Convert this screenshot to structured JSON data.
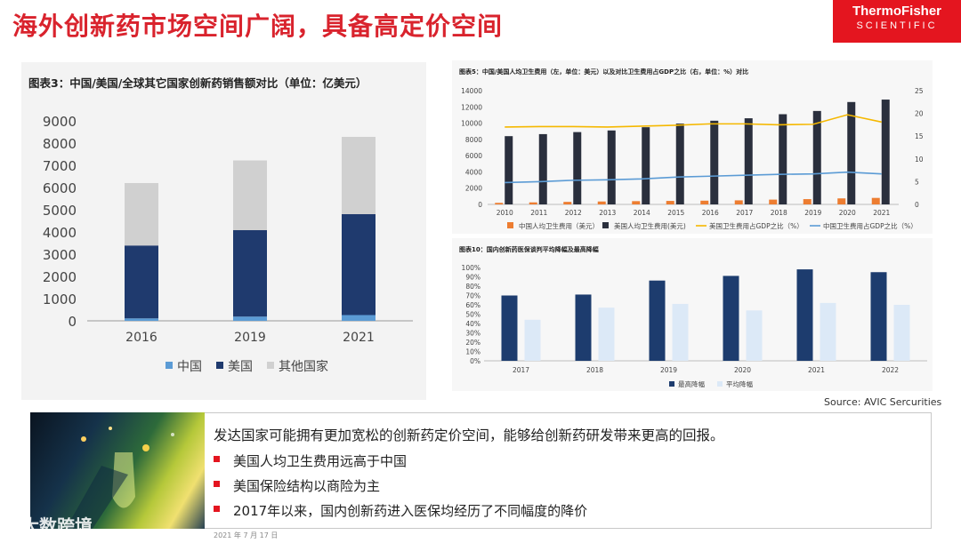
{
  "header": {
    "title": "海外创新药市场空间广阔，具备高定价空间"
  },
  "logo": {
    "line1": "ThermoFisher",
    "line2": "SCIENTIFIC"
  },
  "source": "Source: AVIC Sercurities",
  "bottom": {
    "lead": "发达国家可能拥有更加宽松的创新药定价空间，能够给创新药研发带来更高的回报。",
    "bullets": [
      "美国人均卫生费用远高于中国",
      "美国保险结构以商险为主",
      "2017年以来，国内创新药进入医保均经历了不同幅度的降价"
    ],
    "watermark": "大数跨境",
    "footer_note": "2021 年 7 月 17 日"
  },
  "colors": {
    "accent": "#d9232d",
    "navy": "#1f3a6e",
    "gray": "#d0d0d0",
    "blue": "#5b9bd5",
    "orange": "#ed7d31",
    "yellow": "#f5b800",
    "darkbar": "#2a2f3d",
    "lightbar": "#dce9f7",
    "barnavy": "#1d3c6e"
  },
  "chart_data": [
    {
      "id": "fig3",
      "type": "bar",
      "stacked": true,
      "title": "图表3：中国/美国/全球其它国家创新药销售额对比（单位：亿美元）",
      "categories": [
        "2016",
        "2019",
        "2021"
      ],
      "series": [
        {
          "name": "中国",
          "values": [
            110,
            190,
            260
          ]
        },
        {
          "name": "美国",
          "values": [
            3280,
            3890,
            4540
          ]
        },
        {
          "name": "其他国家",
          "values": [
            2810,
            3140,
            3480
          ]
        }
      ],
      "ylim": [
        0,
        9000
      ],
      "yticks": [
        "0",
        "1000",
        "2000",
        "3000",
        "4000",
        "5000",
        "6000",
        "7000",
        "8000",
        "9000"
      ],
      "legend": "bottom"
    },
    {
      "id": "fig5",
      "type": "bar",
      "title": "图表5：中国/美国人均卫生费用（左，单位：美元）以及对比卫生费用占GDP之比（右，单位：%）对比",
      "categories": [
        "2010",
        "2011",
        "2012",
        "2013",
        "2014",
        "2015",
        "2016",
        "2017",
        "2018",
        "2019",
        "2020",
        "2021"
      ],
      "series": [
        {
          "name": "中国人均卫生费用（美元）",
          "kind": "bar",
          "axis": "left",
          "values": [
            190,
            250,
            310,
            360,
            400,
            430,
            460,
            500,
            590,
            650,
            740,
            800
          ]
        },
        {
          "name": "美国人均卫生费用(美元)",
          "kind": "bar",
          "axis": "left",
          "values": [
            8400,
            8650,
            8900,
            9100,
            9500,
            9950,
            10300,
            10600,
            11100,
            11500,
            12600,
            12900
          ]
        },
        {
          "name": "美国卫生费用占GDP之比（%）",
          "kind": "line",
          "axis": "right",
          "values": [
            17.0,
            17.1,
            17.1,
            17.0,
            17.2,
            17.4,
            17.7,
            17.7,
            17.5,
            17.6,
            19.7,
            18.1
          ]
        },
        {
          "name": "中国卫生费用占GDP之比（%）",
          "kind": "line",
          "axis": "right",
          "values": [
            4.8,
            5.0,
            5.3,
            5.4,
            5.6,
            6.0,
            6.2,
            6.4,
            6.6,
            6.7,
            7.1,
            6.7
          ]
        }
      ],
      "ylim": [
        0,
        14000
      ],
      "y2lim": [
        0,
        25
      ],
      "yticks": [
        "0",
        "2000",
        "4000",
        "6000",
        "8000",
        "10000",
        "12000",
        "14000"
      ],
      "y2ticks": [
        "0",
        "5",
        "10",
        "15",
        "20",
        "25"
      ],
      "legend": "bottom"
    },
    {
      "id": "fig10",
      "type": "bar",
      "title": "图表10：国内创新药医保谈判平均降幅及最高降幅",
      "categories": [
        "2017",
        "2018",
        "2019",
        "2020",
        "2021",
        "2022"
      ],
      "series": [
        {
          "name": "最高降幅",
          "values": [
            70,
            71,
            86,
            91,
            98,
            95
          ]
        },
        {
          "name": "平均降幅",
          "values": [
            44,
            57,
            61,
            54,
            62,
            60
          ]
        }
      ],
      "ylim": [
        0,
        100
      ],
      "yticks": [
        "0%",
        "10%",
        "20%",
        "30%",
        "40%",
        "50%",
        "60%",
        "70%",
        "80%",
        "90%",
        "100%"
      ],
      "legend": "bottom"
    }
  ]
}
